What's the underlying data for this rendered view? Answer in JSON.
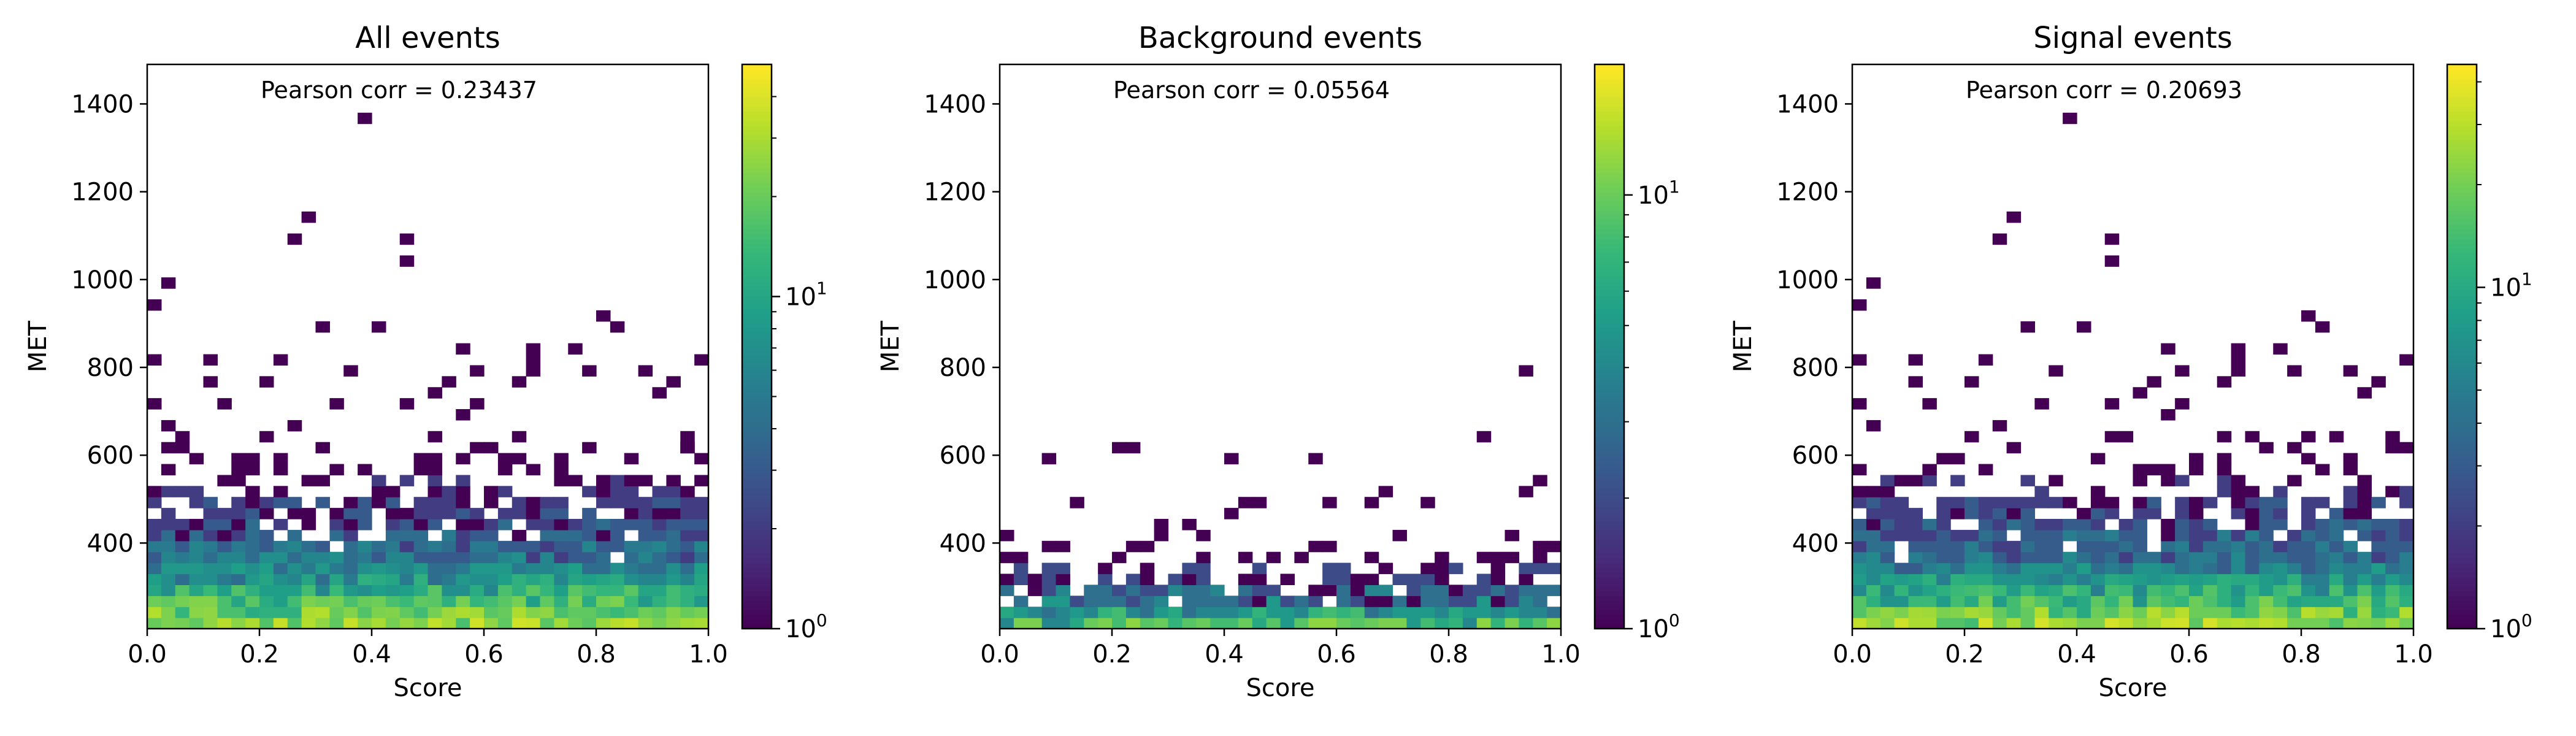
{
  "chart_data": [
    {
      "type": "heatmap",
      "title": "All events",
      "annotation": "Pearson corr = 0.23437",
      "xlabel": "Score",
      "ylabel": "MET",
      "xlim": [
        0.0,
        1.0
      ],
      "ylim": [
        205,
        1490
      ],
      "xticks": [
        "0.0",
        "0.2",
        "0.4",
        "0.6",
        "0.8",
        "1.0"
      ],
      "yticks": [
        "400",
        "600",
        "800",
        "1000",
        "1200",
        "1400"
      ],
      "grid": false,
      "colorscale": "viridis",
      "color_scale_type": "log",
      "colorbar_range": [
        1,
        50
      ],
      "colorbar_ticks": [
        {
          "base": "10",
          "exp": "0",
          "value": 1
        },
        {
          "base": "10",
          "exp": "1",
          "value": 10
        }
      ],
      "bins": {
        "x_count": 40,
        "y_start": 205,
        "bin_height": 25
      },
      "sparse_points": [
        [
          0.39,
          1375
        ],
        [
          0.28,
          1145
        ],
        [
          0.27,
          1080
        ],
        [
          0.45,
          1080
        ],
        [
          0.47,
          1045
        ],
        [
          0.01,
          945
        ],
        [
          0.03,
          980
        ],
        [
          0.31,
          880
        ],
        [
          0.42,
          880
        ],
        [
          0.81,
          915
        ],
        [
          0.84,
          880
        ],
        [
          0.01,
          815
        ],
        [
          0.11,
          825
        ],
        [
          0.24,
          825
        ],
        [
          0.55,
          845
        ],
        [
          0.68,
          850
        ],
        [
          0.69,
          820
        ],
        [
          0.76,
          850
        ],
        [
          0.99,
          825
        ],
        [
          0.12,
          760
        ],
        [
          0.22,
          770
        ],
        [
          0.36,
          780
        ],
        [
          0.53,
          760
        ],
        [
          0.6,
          790
        ],
        [
          0.7,
          780
        ],
        [
          0.88,
          790
        ],
        [
          0.01,
          715
        ],
        [
          0.14,
          715
        ],
        [
          0.34,
          720
        ],
        [
          0.45,
          720
        ],
        [
          0.5,
          740
        ],
        [
          0.6,
          720
        ],
        [
          0.65,
          770
        ],
        [
          0.78,
          790
        ],
        [
          0.93,
          755
        ],
        [
          0.03,
          675
        ],
        [
          0.26,
          655
        ],
        [
          0.55,
          690
        ],
        [
          0.66,
          650
        ],
        [
          0.9,
          730
        ],
        [
          0.97,
          620
        ]
      ],
      "dense_rows": [
        {
          "y": 217,
          "min": 15,
          "max": 38,
          "p": 1.0
        },
        {
          "y": 242,
          "min": 11,
          "max": 32,
          "p": 1.0
        },
        {
          "y": 267,
          "min": 8,
          "max": 25,
          "p": 1.0
        },
        {
          "y": 292,
          "min": 6,
          "max": 18,
          "p": 1.0
        },
        {
          "y": 317,
          "min": 4,
          "max": 12,
          "p": 1.0
        },
        {
          "y": 342,
          "min": 3,
          "max": 9,
          "p": 1.0
        },
        {
          "y": 367,
          "min": 2,
          "max": 7,
          "p": 0.98
        },
        {
          "y": 392,
          "min": 2,
          "max": 6,
          "p": 0.95
        },
        {
          "y": 417,
          "min": 1,
          "max": 5,
          "p": 0.9
        },
        {
          "y": 442,
          "min": 1,
          "max": 4,
          "p": 0.85
        },
        {
          "y": 467,
          "min": 1,
          "max": 3,
          "p": 0.75
        },
        {
          "y": 492,
          "min": 1,
          "max": 3,
          "p": 0.65
        },
        {
          "y": 517,
          "min": 1,
          "max": 2,
          "p": 0.5
        },
        {
          "y": 542,
          "min": 1,
          "max": 2,
          "p": 0.35
        },
        {
          "y": 567,
          "min": 1,
          "max": 1,
          "p": 0.25
        },
        {
          "y": 592,
          "min": 1,
          "max": 1,
          "p": 0.2
        },
        {
          "y": 617,
          "min": 1,
          "max": 1,
          "p": 0.18
        },
        {
          "y": 642,
          "min": 1,
          "max": 1,
          "p": 0.08
        }
      ]
    },
    {
      "type": "heatmap",
      "title": "Background events",
      "annotation": "Pearson corr = 0.05564",
      "xlabel": "Score",
      "ylabel": "MET",
      "xlim": [
        0.0,
        1.0
      ],
      "ylim": [
        205,
        1490
      ],
      "xticks": [
        "0.0",
        "0.2",
        "0.4",
        "0.6",
        "0.8",
        "1.0"
      ],
      "yticks": [
        "400",
        "600",
        "800",
        "1000",
        "1200",
        "1400"
      ],
      "grid": false,
      "colorscale": "viridis",
      "color_scale_type": "log",
      "colorbar_range": [
        1,
        20
      ],
      "colorbar_ticks": [
        {
          "base": "10",
          "exp": "0",
          "value": 1
        },
        {
          "base": "10",
          "exp": "1",
          "value": 10
        }
      ],
      "bins": {
        "x_count": 40,
        "y_start": 205,
        "bin_height": 25
      },
      "sparse_points": [
        [
          0.93,
          780
        ],
        [
          0.86,
          650
        ],
        [
          0.21,
          620
        ],
        [
          0.23,
          620
        ],
        [
          0.09,
          580
        ],
        [
          0.42,
          580
        ],
        [
          0.55,
          580
        ],
        [
          0.97,
          545
        ],
        [
          0.95,
          520
        ],
        [
          0.13,
          485
        ],
        [
          0.4,
          455
        ],
        [
          0.43,
          480
        ],
        [
          0.46,
          480
        ],
        [
          0.6,
          490
        ],
        [
          0.66,
          500
        ],
        [
          0.7,
          510
        ],
        [
          0.77,
          480
        ],
        [
          0.91,
          420
        ],
        [
          0.01,
          420
        ],
        [
          0.3,
          450
        ],
        [
          0.33,
          430
        ]
      ],
      "dense_rows": [
        {
          "y": 217,
          "min": 4,
          "max": 12,
          "p": 1.0
        },
        {
          "y": 242,
          "min": 2,
          "max": 8,
          "p": 1.0
        },
        {
          "y": 267,
          "min": 1,
          "max": 5,
          "p": 0.95
        },
        {
          "y": 292,
          "min": 1,
          "max": 4,
          "p": 0.85
        },
        {
          "y": 317,
          "min": 1,
          "max": 2,
          "p": 0.6
        },
        {
          "y": 342,
          "min": 1,
          "max": 2,
          "p": 0.45
        },
        {
          "y": 367,
          "min": 1,
          "max": 1,
          "p": 0.3
        },
        {
          "y": 392,
          "min": 1,
          "max": 1,
          "p": 0.18
        },
        {
          "y": 417,
          "min": 1,
          "max": 1,
          "p": 0.06
        }
      ]
    },
    {
      "type": "heatmap",
      "title": "Signal events",
      "annotation": "Pearson corr = 0.20693",
      "xlabel": "Score",
      "ylabel": "MET",
      "xlim": [
        0.0,
        1.0
      ],
      "ylim": [
        205,
        1490
      ],
      "xticks": [
        "0.0",
        "0.2",
        "0.4",
        "0.6",
        "0.8",
        "1.0"
      ],
      "yticks": [
        "400",
        "600",
        "800",
        "1000",
        "1200",
        "1400"
      ],
      "grid": false,
      "colorscale": "viridis",
      "color_scale_type": "log",
      "colorbar_range": [
        1,
        45
      ],
      "colorbar_ticks": [
        {
          "base": "10",
          "exp": "0",
          "value": 1
        },
        {
          "base": "10",
          "exp": "1",
          "value": 10
        }
      ],
      "bins": {
        "x_count": 40,
        "y_start": 205,
        "bin_height": 25
      },
      "sparse_points": [
        [
          0.39,
          1375
        ],
        [
          0.28,
          1145
        ],
        [
          0.27,
          1080
        ],
        [
          0.45,
          1080
        ],
        [
          0.47,
          1045
        ],
        [
          0.01,
          945
        ],
        [
          0.03,
          980
        ],
        [
          0.31,
          880
        ],
        [
          0.42,
          880
        ],
        [
          0.81,
          915
        ],
        [
          0.84,
          880
        ],
        [
          0.01,
          815
        ],
        [
          0.11,
          825
        ],
        [
          0.24,
          825
        ],
        [
          0.55,
          845
        ],
        [
          0.68,
          850
        ],
        [
          0.69,
          820
        ],
        [
          0.76,
          850
        ],
        [
          0.99,
          825
        ],
        [
          0.12,
          760
        ],
        [
          0.22,
          770
        ],
        [
          0.36,
          780
        ],
        [
          0.53,
          760
        ],
        [
          0.6,
          790
        ],
        [
          0.7,
          780
        ],
        [
          0.88,
          790
        ],
        [
          0.01,
          715
        ],
        [
          0.14,
          715
        ],
        [
          0.34,
          720
        ],
        [
          0.45,
          720
        ],
        [
          0.5,
          740
        ],
        [
          0.6,
          720
        ],
        [
          0.65,
          770
        ],
        [
          0.78,
          790
        ],
        [
          0.93,
          755
        ],
        [
          0.03,
          675
        ],
        [
          0.26,
          655
        ],
        [
          0.55,
          690
        ],
        [
          0.66,
          650
        ],
        [
          0.9,
          730
        ],
        [
          0.97,
          620
        ]
      ],
      "dense_rows": [
        {
          "y": 217,
          "min": 14,
          "max": 36,
          "p": 1.0
        },
        {
          "y": 242,
          "min": 10,
          "max": 30,
          "p": 1.0
        },
        {
          "y": 267,
          "min": 7,
          "max": 22,
          "p": 1.0
        },
        {
          "y": 292,
          "min": 5,
          "max": 16,
          "p": 1.0
        },
        {
          "y": 317,
          "min": 4,
          "max": 11,
          "p": 1.0
        },
        {
          "y": 342,
          "min": 3,
          "max": 8,
          "p": 1.0
        },
        {
          "y": 367,
          "min": 2,
          "max": 6,
          "p": 0.98
        },
        {
          "y": 392,
          "min": 2,
          "max": 5,
          "p": 0.95
        },
        {
          "y": 417,
          "min": 1,
          "max": 5,
          "p": 0.9
        },
        {
          "y": 442,
          "min": 1,
          "max": 4,
          "p": 0.85
        },
        {
          "y": 467,
          "min": 1,
          "max": 3,
          "p": 0.75
        },
        {
          "y": 492,
          "min": 1,
          "max": 3,
          "p": 0.65
        },
        {
          "y": 517,
          "min": 1,
          "max": 2,
          "p": 0.5
        },
        {
          "y": 542,
          "min": 1,
          "max": 2,
          "p": 0.35
        },
        {
          "y": 567,
          "min": 1,
          "max": 1,
          "p": 0.25
        },
        {
          "y": 592,
          "min": 1,
          "max": 1,
          "p": 0.2
        },
        {
          "y": 617,
          "min": 1,
          "max": 1,
          "p": 0.18
        },
        {
          "y": 642,
          "min": 1,
          "max": 1,
          "p": 0.08
        }
      ]
    }
  ]
}
